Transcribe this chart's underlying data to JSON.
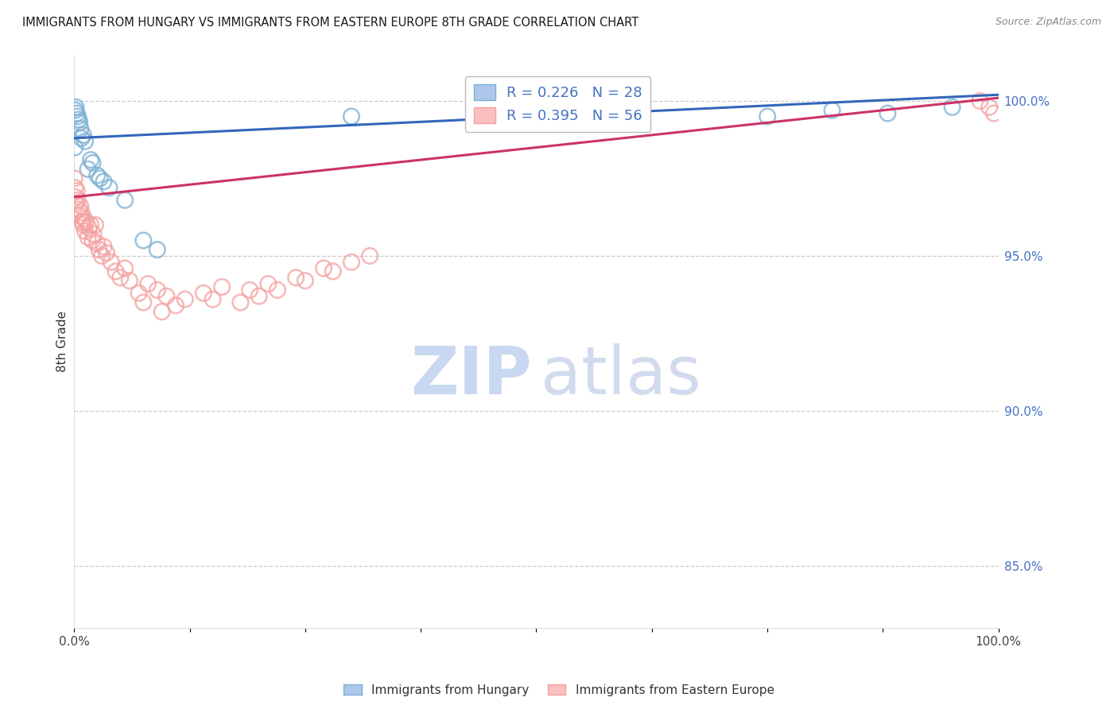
{
  "title": "IMMIGRANTS FROM HUNGARY VS IMMIGRANTS FROM EASTERN EUROPE 8TH GRADE CORRELATION CHART",
  "source": "Source: ZipAtlas.com",
  "ylabel": "8th Grade",
  "xlim": [
    0.0,
    100.0
  ],
  "ylim": [
    83.0,
    101.5
  ],
  "right_yticks": [
    85.0,
    90.0,
    95.0,
    100.0
  ],
  "right_yticklabels": [
    "85.0%",
    "90.0%",
    "95.0%",
    "100.0%"
  ],
  "blue_color": "#7bafd4",
  "pink_color": "#f4a0a0",
  "blue_line_color": "#3366bb",
  "pink_line_color": "#cc3366",
  "blue_label": "R = 0.226   N = 28",
  "pink_label": "R = 0.395   N = 56",
  "bottom_blue_label": "Immigrants from Hungary",
  "bottom_pink_label": "Immigrants from Eastern Europe",
  "blue_x": [
    0.1,
    0.15,
    0.2,
    0.3,
    0.4,
    0.5,
    0.6,
    0.7,
    0.8,
    1.0,
    1.2,
    1.5,
    1.8,
    2.0,
    2.5,
    2.8,
    3.2,
    3.8,
    5.5,
    7.5,
    9.0,
    30.0,
    55.0,
    58.0,
    75.0,
    82.0,
    88.0,
    95.0
  ],
  "blue_y": [
    98.5,
    99.7,
    99.8,
    99.6,
    99.5,
    99.4,
    99.3,
    99.1,
    98.8,
    98.9,
    98.7,
    97.8,
    98.1,
    98.0,
    97.6,
    97.5,
    97.4,
    97.2,
    96.8,
    95.5,
    95.2,
    99.5,
    99.7,
    100.0,
    99.5,
    99.7,
    99.6,
    99.8
  ],
  "pink_x": [
    0.05,
    0.1,
    0.15,
    0.2,
    0.3,
    0.4,
    0.5,
    0.6,
    0.7,
    0.8,
    0.9,
    1.0,
    1.1,
    1.2,
    1.3,
    1.5,
    1.6,
    1.8,
    2.0,
    2.1,
    2.3,
    2.5,
    2.7,
    3.0,
    3.2,
    3.5,
    4.0,
    4.5,
    5.0,
    5.5,
    6.0,
    7.0,
    8.0,
    9.0,
    10.0,
    12.0,
    14.0,
    16.0,
    18.0,
    20.0,
    22.0,
    25.0,
    28.0,
    32.0,
    7.5,
    9.5,
    11.0,
    15.0,
    19.0,
    21.0,
    24.0,
    27.0,
    30.0,
    99.0,
    98.0,
    99.5
  ],
  "pink_y": [
    97.5,
    97.2,
    96.9,
    96.7,
    97.1,
    96.8,
    96.5,
    96.3,
    96.6,
    96.4,
    96.1,
    96.0,
    96.2,
    95.8,
    96.1,
    95.6,
    95.9,
    96.0,
    95.5,
    95.7,
    96.0,
    95.4,
    95.2,
    95.0,
    95.3,
    95.1,
    94.8,
    94.5,
    94.3,
    94.6,
    94.2,
    93.8,
    94.1,
    93.9,
    93.7,
    93.6,
    93.8,
    94.0,
    93.5,
    93.7,
    93.9,
    94.2,
    94.5,
    95.0,
    93.5,
    93.2,
    93.4,
    93.6,
    93.9,
    94.1,
    94.3,
    94.6,
    94.8,
    99.8,
    100.0,
    99.6
  ],
  "watermark_zip_color": "#d0dff0",
  "watermark_atlas_color": "#c8d8ee"
}
